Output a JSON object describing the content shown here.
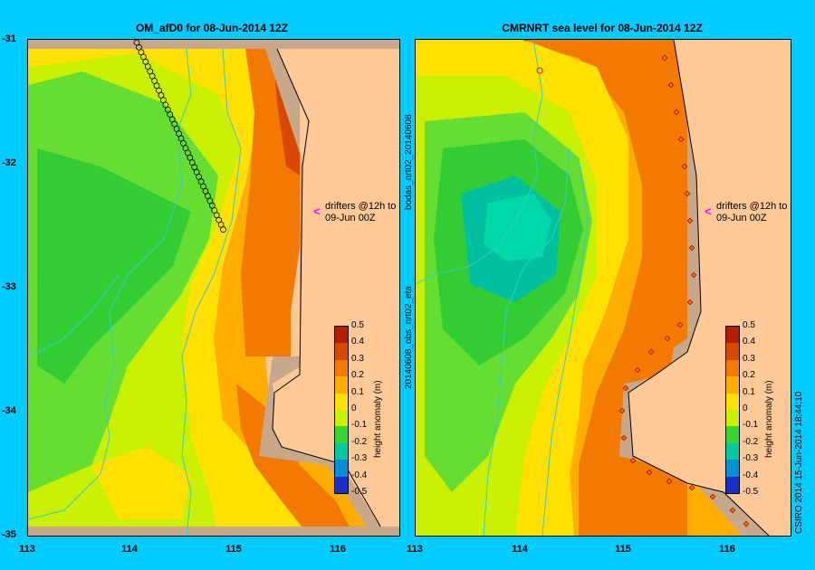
{
  "left_panel": {
    "title": "OM_afD0 for 08-Jun-2014 12Z",
    "annotation": {
      "line1": "drifters @12h to",
      "line2": "09-Jun 00Z"
    }
  },
  "right_panel": {
    "title": "CMRNRT sea level  for 08-Jun-2014 12Z",
    "annotation": {
      "line1": "drifters @12h to",
      "line2": "09-Jun 00Z"
    },
    "side_label_top": "bodas_nrt02_20140608",
    "side_label_bottom": "20140608_obs_nrt02_eta"
  },
  "y_ticks": [
    "-31",
    "-32",
    "-33",
    "-34",
    "-35"
  ],
  "left_x_ticks": [
    "113",
    "114",
    "115",
    "116"
  ],
  "right_x_ticks": [
    "113",
    "114",
    "115",
    "116"
  ],
  "colorbar": {
    "label": "height anomaly (m)",
    "ticks": [
      "0.5",
      "0.4",
      "0.3",
      "0.2",
      "0.1",
      "0",
      "-0.1",
      "-0.2",
      "-0.3",
      "-0.4",
      "-0.5"
    ],
    "colors": [
      "#b22000",
      "#d94800",
      "#f27a00",
      "#ffae00",
      "#ffe000",
      "#c8f000",
      "#33d633",
      "#00c8a0",
      "#0090d8",
      "#1830c8",
      "#000080"
    ]
  },
  "copyright": "CSIRO 2014   15-Jun-2014 18:44:10",
  "colors": {
    "background": "#00ccff",
    "land": "#fec897",
    "drifter_arrow": "#ff00ff"
  }
}
